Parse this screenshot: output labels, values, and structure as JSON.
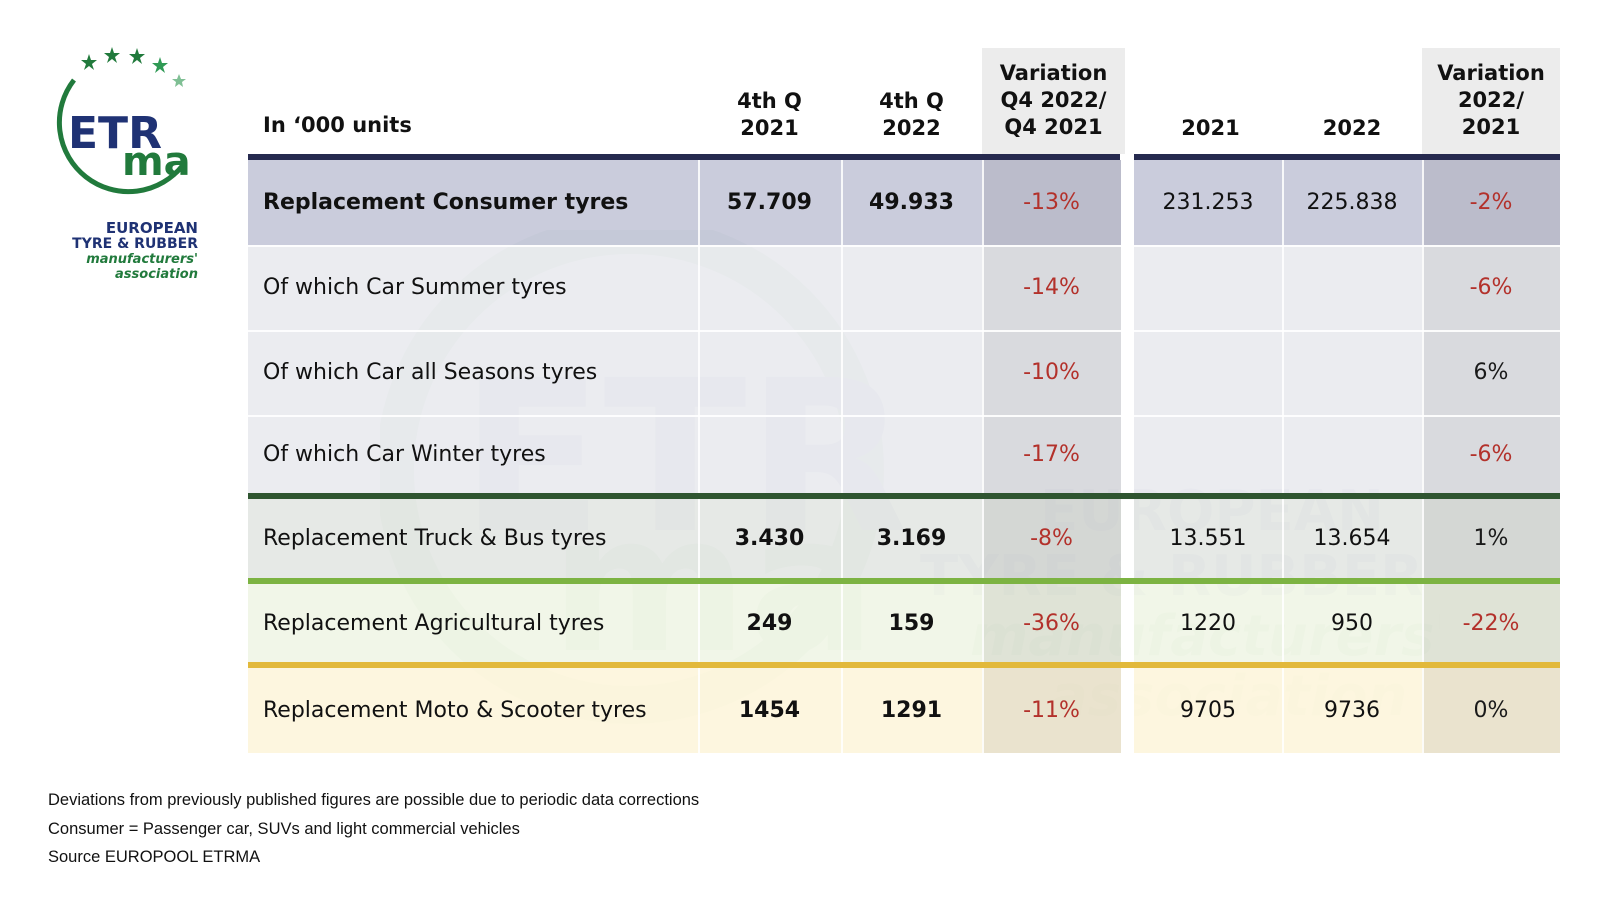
{
  "logo": {
    "acronym_top": "ETR",
    "acronym_bottom": "ma",
    "line1": "EUROPEAN",
    "line2": "TYRE & RUBBER",
    "line3": "manufacturers'",
    "line4": "association"
  },
  "table": {
    "unit_label": "In ‘000 units",
    "headers": {
      "q4_2021": [
        "4th Q",
        "2021"
      ],
      "q4_2022": [
        "4th Q",
        "2022"
      ],
      "var_q": [
        "Variation",
        "Q4 2022/",
        "Q4 2021"
      ],
      "y2021": [
        "2021"
      ],
      "y2022": [
        "2022"
      ],
      "var_y": [
        "Variation",
        "2022/",
        "2021"
      ]
    },
    "rows": [
      {
        "label": "Replacement Consumer tyres",
        "q4_2021": "57.709",
        "q4_2022": "49.933",
        "var_q": "-13%",
        "y2021": "231.253",
        "y2022": "225.838",
        "var_y": "-2%"
      },
      {
        "label": "Of which Car Summer tyres",
        "q4_2021": "",
        "q4_2022": "",
        "var_q": "-14%",
        "y2021": "",
        "y2022": "",
        "var_y": "-6%"
      },
      {
        "label": "Of which Car all Seasons tyres",
        "q4_2021": "",
        "q4_2022": "",
        "var_q": "-10%",
        "y2021": "",
        "y2022": "",
        "var_y": "6%"
      },
      {
        "label": "Of which Car Winter tyres",
        "q4_2021": "",
        "q4_2022": "",
        "var_q": "-17%",
        "y2021": "",
        "y2022": "",
        "var_y": "-6%"
      },
      {
        "label": "Replacement Truck & Bus tyres",
        "q4_2021": "3.430",
        "q4_2022": "3.169",
        "var_q": "-8%",
        "y2021": "13.551",
        "y2022": "13.654",
        "var_y": "1%"
      },
      {
        "label": "Replacement Agricultural tyres",
        "q4_2021": "249",
        "q4_2022": "159",
        "var_q": "-36%",
        "y2021": "1220",
        "y2022": "950",
        "var_y": "-22%"
      },
      {
        "label": "Replacement Moto & Scooter tyres",
        "q4_2021": "1454",
        "q4_2022": "1291",
        "var_q": "-11%",
        "y2021": "9705",
        "y2022": "9736",
        "var_y": "0%"
      }
    ]
  },
  "colors": {
    "consumer_band": "#262a4f",
    "truck_band": "#2f5530",
    "agri_band": "#7cb342",
    "moto_band": "#e2b93b",
    "negative_text": "#b3312b"
  },
  "notes": [
    "Deviations from previously published figures are possible due to periodic data corrections",
    "Consumer = Passenger car, SUVs and light commercial vehicles",
    "Source EUROPOOL ETRMA"
  ]
}
